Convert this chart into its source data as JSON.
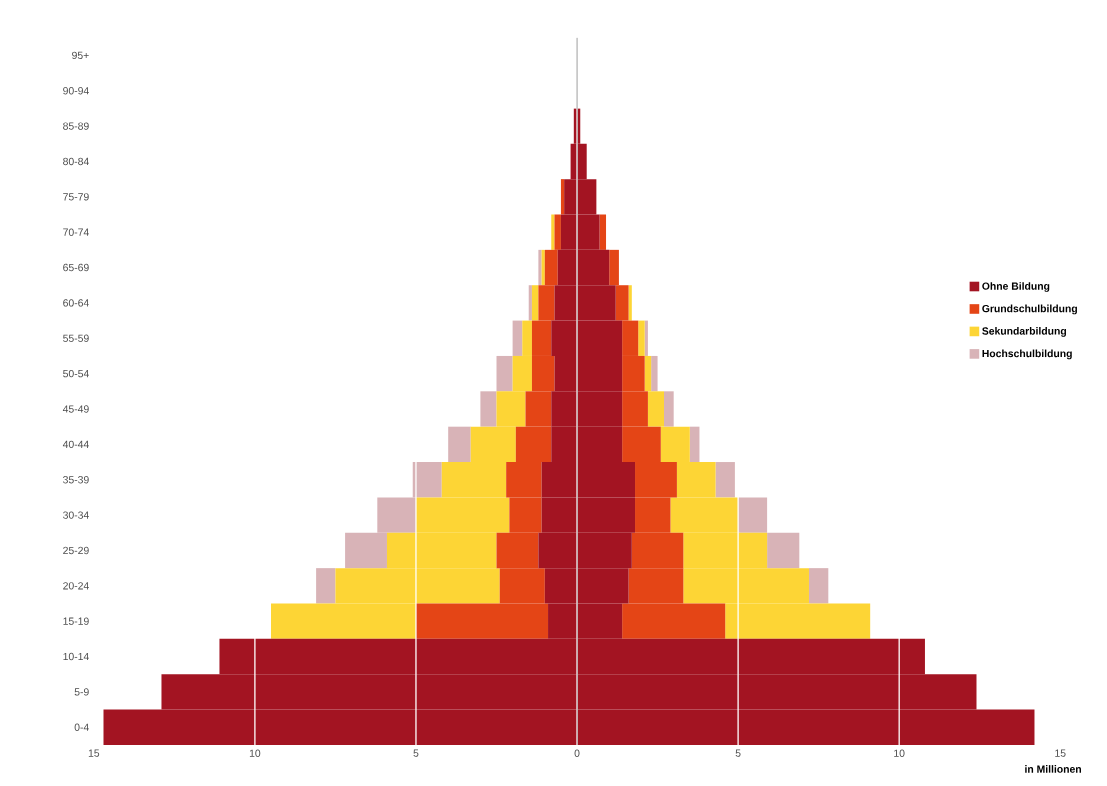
{
  "chart_data": {
    "type": "bar",
    "orientation": "horizontal",
    "stacked": true,
    "categories": [
      "95+",
      "90-94",
      "85-89",
      "80-84",
      "75-79",
      "70-74",
      "65-69",
      "60-64",
      "55-59",
      "50-54",
      "45-49",
      "40-44",
      "35-39",
      "30-34",
      "25-29",
      "20-24",
      "15-19",
      "10-14",
      "5-9",
      "0-4"
    ],
    "series": [
      {
        "name": "Ohne Bildung",
        "color": "#a31422",
        "values": [
          0,
          0,
          -0.1,
          -0.2,
          -0.4,
          -0.5,
          -0.6,
          -0.7,
          -0.8,
          -0.7,
          -0.8,
          -0.8,
          -1.1,
          -1.1,
          -1.2,
          -1.0,
          -0.9,
          -11.1,
          -12.9,
          -14.7
        ]
      },
      {
        "name": "Grundschulbildung",
        "color": "#e44516",
        "values": [
          0,
          0,
          0,
          0,
          -0.1,
          -0.2,
          -0.4,
          -0.5,
          -0.6,
          -0.7,
          -0.8,
          -1.1,
          -1.1,
          -1.0,
          -1.3,
          -1.4,
          -4.1,
          0,
          0,
          0
        ]
      },
      {
        "name": "Sekundarbildung",
        "color": "#fdd535",
        "values": [
          0,
          0,
          0,
          0,
          0,
          -0.1,
          -0.1,
          -0.2,
          -0.3,
          -0.6,
          -0.9,
          -1.4,
          -2.0,
          -2.9,
          -3.4,
          -5.1,
          -4.5,
          0,
          0,
          0
        ]
      },
      {
        "name": "Hochschulbildung",
        "color": "#d8b3b7",
        "values": [
          0,
          0,
          0,
          0,
          0,
          0,
          -0.1,
          -0.1,
          -0.3,
          -0.5,
          -0.5,
          -0.7,
          -0.9,
          -1.2,
          -1.3,
          -0.6,
          0,
          0,
          0,
          0
        ]
      },
      {
        "color": "#a31422",
        "values": [
          0,
          0,
          0.1,
          0.3,
          0.6,
          0.7,
          1.0,
          1.2,
          1.4,
          1.4,
          1.4,
          1.4,
          1.8,
          1.8,
          1.7,
          1.6,
          1.4,
          10.8,
          12.4,
          14.2
        ]
      },
      {
        "color": "#e44516",
        "values": [
          0,
          0,
          0,
          0,
          0,
          0.2,
          0.3,
          0.4,
          0.5,
          0.7,
          0.8,
          1.2,
          1.3,
          1.1,
          1.6,
          1.7,
          3.2,
          0,
          0,
          0
        ]
      },
      {
        "color": "#fdd535",
        "values": [
          0,
          0,
          0,
          0,
          0,
          0,
          0,
          0.1,
          0.2,
          0.2,
          0.5,
          0.9,
          1.2,
          2.1,
          2.6,
          3.9,
          4.5,
          0,
          0,
          0
        ]
      },
      {
        "color": "#d8b3b7",
        "values": [
          0,
          0,
          0,
          0,
          0,
          0,
          0,
          0,
          0.1,
          0.2,
          0.3,
          0.3,
          0.6,
          0.9,
          1.0,
          0.6,
          0,
          0,
          0,
          0
        ]
      }
    ],
    "xlim": [
      -15,
      15
    ],
    "xticks": [
      {
        "value": -15,
        "label": "15"
      },
      {
        "value": -10,
        "label": "10"
      },
      {
        "value": -5,
        "label": "5"
      },
      0,
      5,
      10,
      15
    ],
    "xlabel": "in Millionen",
    "grid": "x",
    "legend": "right",
    "ref_lines": [
      {
        "axis": "x",
        "value": 0,
        "color": "#000000"
      }
    ]
  }
}
